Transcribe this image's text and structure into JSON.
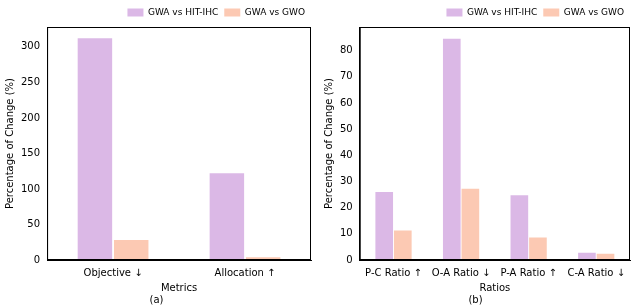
{
  "chart_data": [
    {
      "type": "bar",
      "subtitle": "(a)",
      "x_label": "Metrics",
      "y_label": "Percentage of Change (%)",
      "categories": [
        "Objective ↓",
        "Allocation ↑"
      ],
      "series": [
        {
          "name": "GWA vs HIT-IHC",
          "color": "#dbb8e6",
          "values": [
            312,
            122
          ]
        },
        {
          "name": "GWA vs GWO",
          "color": "#fcc9b3",
          "values": [
            28,
            4
          ]
        }
      ],
      "ylim": [
        0,
        328
      ],
      "yticks": [
        0,
        50,
        100,
        150,
        200,
        250,
        300
      ],
      "grid": false,
      "legend": "upper right"
    },
    {
      "type": "bar",
      "subtitle": "(b)",
      "x_label": "Ratios",
      "y_label": "Percentage of Change (%)",
      "categories": [
        "P-C Ratio ↑",
        "O-A Ratio ↓",
        "P-A Ratio ↑",
        "C-A Ratio ↓"
      ],
      "series": [
        {
          "name": "GWA vs HIT-IHC",
          "color": "#dbb8e6",
          "values": [
            26,
            84.5,
            24.7,
            2.8
          ]
        },
        {
          "name": "GWA vs GWO",
          "color": "#fcc9b3",
          "values": [
            11.3,
            27.2,
            8.6,
            2.4
          ]
        }
      ],
      "ylim": [
        0,
        89
      ],
      "yticks": [
        0,
        10,
        20,
        30,
        40,
        50,
        60,
        70,
        80
      ],
      "grid": false,
      "legend": "upper right"
    }
  ]
}
